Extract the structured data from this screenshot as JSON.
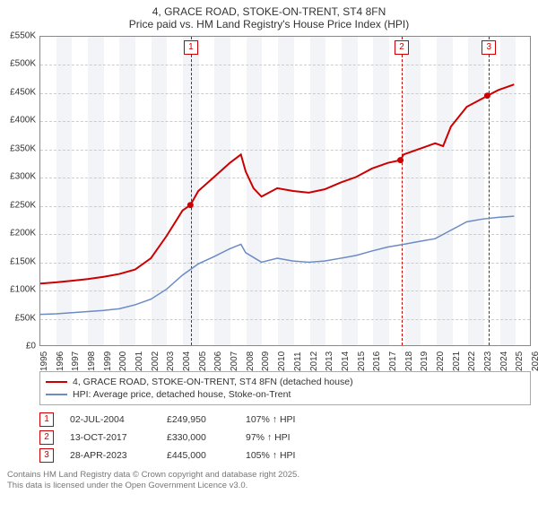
{
  "title": "4, GRACE ROAD, STOKE-ON-TRENT, ST4 8FN",
  "subtitle": "Price paid vs. HM Land Registry's House Price Index (HPI)",
  "chart": {
    "type": "line",
    "background_color": "#ffffff",
    "band_color": "#f2f4f7",
    "grid_color": "#cccccc",
    "axis_color": "#888888",
    "x_years": [
      1995,
      1996,
      1997,
      1998,
      1999,
      2000,
      2001,
      2002,
      2003,
      2004,
      2005,
      2006,
      2007,
      2008,
      2009,
      2010,
      2011,
      2012,
      2013,
      2014,
      2015,
      2016,
      2017,
      2018,
      2019,
      2020,
      2021,
      2022,
      2023,
      2024,
      2025,
      2026
    ],
    "xlim": [
      1995,
      2026
    ],
    "ylim": [
      0,
      550000
    ],
    "yticks": [
      0,
      50000,
      100000,
      150000,
      200000,
      250000,
      300000,
      350000,
      400000,
      450000,
      500000,
      550000
    ],
    "ytick_labels": [
      "£0",
      "£50K",
      "£100K",
      "£150K",
      "£200K",
      "£250K",
      "£300K",
      "£350K",
      "£400K",
      "£450K",
      "£500K",
      "£550K"
    ],
    "series": [
      {
        "name": "4, GRACE ROAD, STOKE-ON-TRENT, ST4 8FN (detached house)",
        "color": "#cc0000",
        "width": 2,
        "data": [
          [
            1995,
            110000
          ],
          [
            1996,
            112000
          ],
          [
            1997,
            115000
          ],
          [
            1998,
            118000
          ],
          [
            1999,
            122000
          ],
          [
            2000,
            127000
          ],
          [
            2001,
            135000
          ],
          [
            2002,
            155000
          ],
          [
            2003,
            195000
          ],
          [
            2004,
            240000
          ],
          [
            2004.5,
            249950
          ],
          [
            2005,
            275000
          ],
          [
            2006,
            300000
          ],
          [
            2007,
            325000
          ],
          [
            2007.7,
            340000
          ],
          [
            2008,
            310000
          ],
          [
            2008.5,
            280000
          ],
          [
            2009,
            265000
          ],
          [
            2010,
            280000
          ],
          [
            2011,
            275000
          ],
          [
            2012,
            272000
          ],
          [
            2013,
            278000
          ],
          [
            2014,
            290000
          ],
          [
            2015,
            300000
          ],
          [
            2016,
            315000
          ],
          [
            2017,
            325000
          ],
          [
            2017.8,
            330000
          ],
          [
            2018,
            340000
          ],
          [
            2019,
            350000
          ],
          [
            2020,
            360000
          ],
          [
            2020.5,
            355000
          ],
          [
            2021,
            390000
          ],
          [
            2022,
            425000
          ],
          [
            2023,
            440000
          ],
          [
            2023.3,
            445000
          ],
          [
            2024,
            455000
          ],
          [
            2025,
            465000
          ]
        ]
      },
      {
        "name": "HPI: Average price, detached house, Stoke-on-Trent",
        "color": "#6b8bc4",
        "width": 1.5,
        "data": [
          [
            1995,
            55000
          ],
          [
            1996,
            56000
          ],
          [
            1997,
            58000
          ],
          [
            1998,
            60000
          ],
          [
            1999,
            62000
          ],
          [
            2000,
            65000
          ],
          [
            2001,
            72000
          ],
          [
            2002,
            82000
          ],
          [
            2003,
            100000
          ],
          [
            2004,
            125000
          ],
          [
            2005,
            145000
          ],
          [
            2006,
            158000
          ],
          [
            2007,
            172000
          ],
          [
            2007.7,
            180000
          ],
          [
            2008,
            165000
          ],
          [
            2009,
            148000
          ],
          [
            2010,
            155000
          ],
          [
            2011,
            150000
          ],
          [
            2012,
            148000
          ],
          [
            2013,
            150000
          ],
          [
            2014,
            155000
          ],
          [
            2015,
            160000
          ],
          [
            2016,
            168000
          ],
          [
            2017,
            175000
          ],
          [
            2018,
            180000
          ],
          [
            2019,
            185000
          ],
          [
            2020,
            190000
          ],
          [
            2021,
            205000
          ],
          [
            2022,
            220000
          ],
          [
            2023,
            225000
          ],
          [
            2024,
            228000
          ],
          [
            2025,
            230000
          ]
        ]
      }
    ],
    "markers": [
      {
        "n": "1",
        "year": 2004.5,
        "price": 249950
      },
      {
        "n": "2",
        "year": 2017.8,
        "price": 330000
      },
      {
        "n": "3",
        "year": 2023.3,
        "price": 445000
      }
    ]
  },
  "legend": [
    {
      "color": "#cc0000",
      "label": "4, GRACE ROAD, STOKE-ON-TRENT, ST4 8FN (detached house)"
    },
    {
      "color": "#6b8bc4",
      "label": "HPI: Average price, detached house, Stoke-on-Trent"
    }
  ],
  "transactions": [
    {
      "n": "1",
      "date": "02-JUL-2004",
      "price": "£249,950",
      "pct": "107% ↑ HPI"
    },
    {
      "n": "2",
      "date": "13-OCT-2017",
      "price": "£330,000",
      "pct": "97% ↑ HPI"
    },
    {
      "n": "3",
      "date": "28-APR-2023",
      "price": "£445,000",
      "pct": "105% ↑ HPI"
    }
  ],
  "credit1": "Contains HM Land Registry data © Crown copyright and database right 2025.",
  "credit2": "This data is licensed under the Open Government Licence v3.0."
}
